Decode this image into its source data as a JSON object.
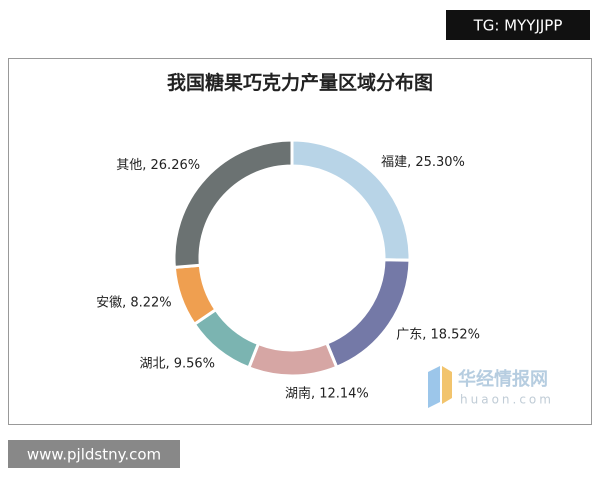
{
  "chart_data": {
    "type": "donut",
    "title": "我国糖果巧克力产量区域分布图",
    "values": [
      25.3,
      18.52,
      12.14,
      9.56,
      8.22,
      26.26
    ],
    "value_labels": [
      "福建, 25.30%",
      "广东, 18.52%",
      "湖南, 12.14%",
      "湖北, 9.56%",
      "安徽, 8.22%",
      "其他, 26.26%"
    ],
    "colors": [
      "#b8d4e7",
      "#7479a7",
      "#d6a6a4",
      "#7bb4b1",
      "#ef9f50",
      "#6b7272"
    ]
  },
  "watermarks": {
    "top_right": "TG: MYYJJPP",
    "bottom_left": "www.pjldstny.com",
    "logo": "华经情报网",
    "logo_url": "huaon.com"
  }
}
